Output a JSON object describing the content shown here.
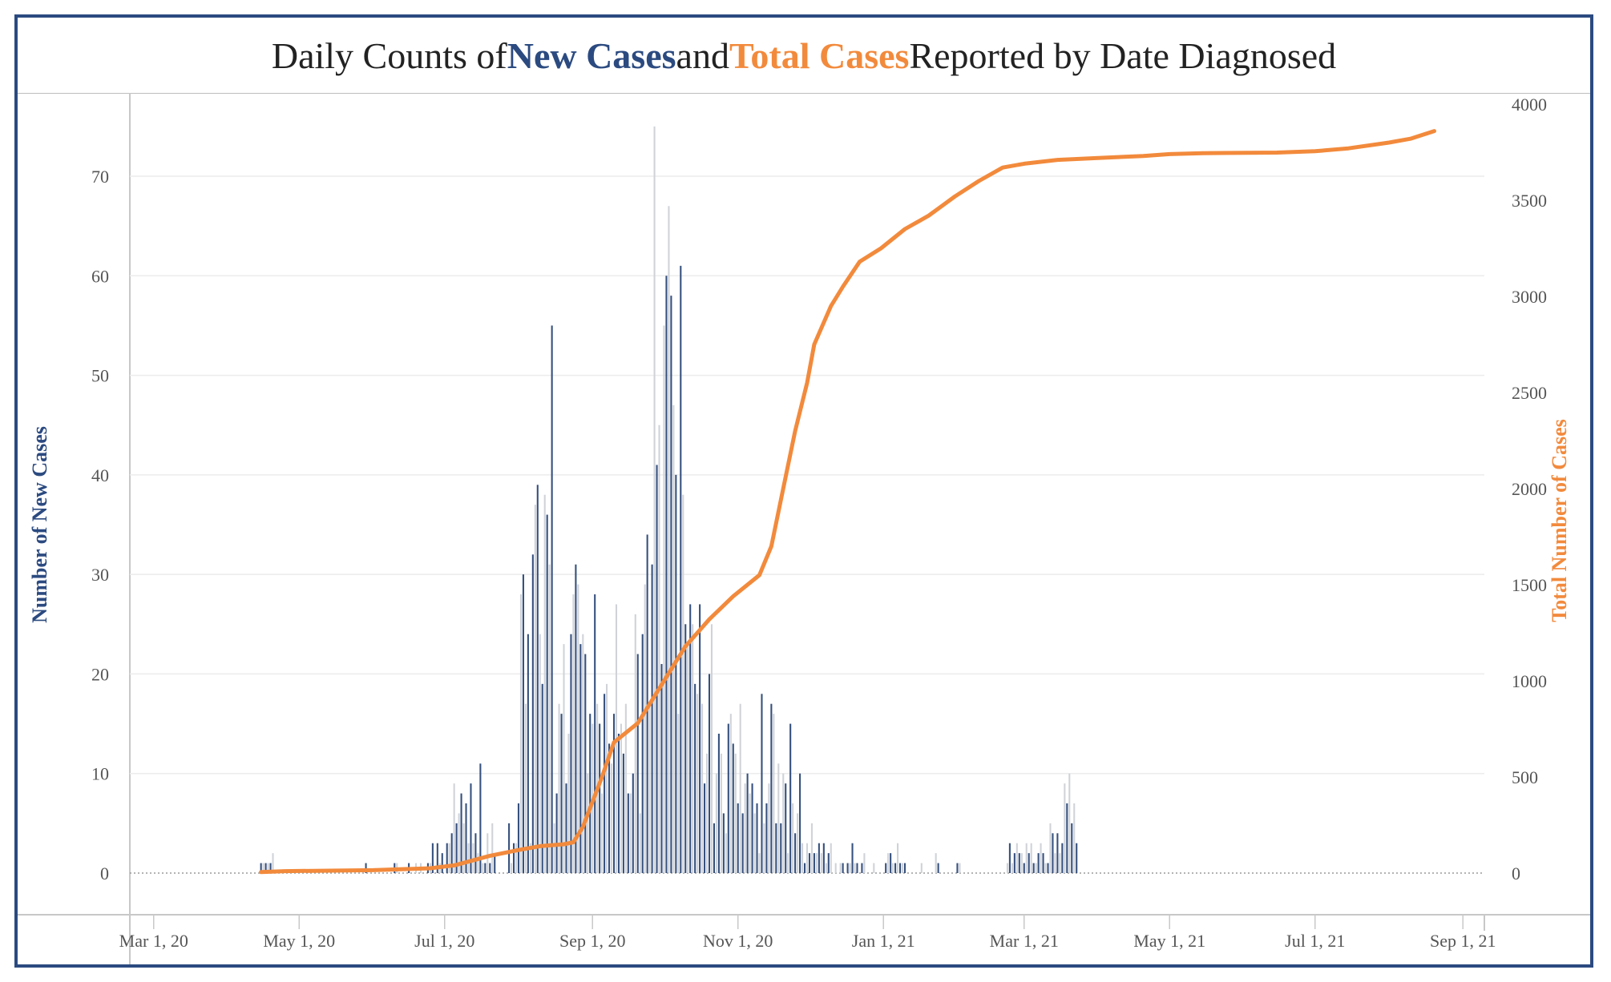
{
  "title": {
    "prefix": "Daily Counts of ",
    "series_a": "New Cases",
    "middle": " and ",
    "series_b": "Total Cases",
    "suffix": " Reported by Date Diagnosed"
  },
  "colors": {
    "frame": "#2b4a80",
    "bar_dark": "#35507e",
    "bar_light": "#cfd3d8",
    "line": "#f28a3c",
    "grid": "#ececec",
    "text": "#555555"
  },
  "chart_data": {
    "type": "bar",
    "xlabel": "",
    "ylabel": "Number of New Cases",
    "y2label": "Total Number of Cases",
    "ylim": [
      0,
      78
    ],
    "y2lim": [
      0,
      4000
    ],
    "yticks": [
      0,
      10,
      20,
      30,
      40,
      50,
      60,
      70
    ],
    "y2ticks": [
      0,
      500,
      1000,
      1500,
      2000,
      2500,
      3000,
      3500,
      4000
    ],
    "xlim": [
      "2020-02-20",
      "2021-09-10"
    ],
    "xticks": [
      {
        "date": "2020-03-01",
        "label": "Mar 1, 20"
      },
      {
        "date": "2020-05-01",
        "label": "May 1, 20"
      },
      {
        "date": "2020-07-01",
        "label": "Jul 1, 20"
      },
      {
        "date": "2020-09-01",
        "label": "Sep 1, 20"
      },
      {
        "date": "2020-11-01",
        "label": "Nov 1, 20"
      },
      {
        "date": "2021-01-01",
        "label": "Jan 1, 21"
      },
      {
        "date": "2021-03-01",
        "label": "Mar 1, 21"
      },
      {
        "date": "2021-05-01",
        "label": "May 1, 21"
      },
      {
        "date": "2021-07-01",
        "label": "Jul 1, 21"
      },
      {
        "date": "2021-09-01",
        "label": "Sep 1, 21"
      }
    ],
    "grid": true,
    "series": [
      {
        "name": "New Cases",
        "type": "bar",
        "axis": "left",
        "start_date": "2020-04-15",
        "values": [
          1,
          1,
          1,
          1,
          1,
          2,
          0,
          0,
          0,
          0,
          0,
          0,
          0,
          0,
          0,
          0,
          0,
          0,
          0,
          0,
          0,
          0,
          0,
          0,
          0,
          0,
          0,
          0,
          0,
          0,
          0,
          0,
          0,
          0,
          0,
          0,
          0,
          0,
          0,
          0,
          0,
          0,
          0,
          0,
          1,
          0,
          0,
          0,
          0,
          0,
          0,
          0,
          0,
          0,
          0,
          0,
          1,
          1,
          0,
          0,
          0,
          0,
          1,
          0,
          0,
          1,
          0,
          1,
          0,
          0,
          1,
          1,
          3,
          0,
          3,
          1,
          2,
          0,
          3,
          3,
          4,
          9,
          5,
          6,
          8,
          5,
          7,
          3,
          9,
          3,
          4,
          2,
          11,
          1,
          1,
          4,
          1,
          5,
          2,
          0,
          0,
          0,
          0,
          0,
          5,
          1,
          3,
          3,
          7,
          28,
          30,
          17,
          24,
          3,
          32,
          37,
          39,
          24,
          19,
          38,
          36,
          31,
          55,
          5,
          8,
          17,
          16,
          23,
          9,
          14,
          24,
          28,
          31,
          29,
          23,
          24,
          22,
          10,
          16,
          15,
          28,
          17,
          15,
          8,
          18,
          19,
          13,
          11,
          16,
          27,
          14,
          15,
          12,
          17,
          8,
          8,
          10,
          26,
          22,
          6,
          24,
          29,
          34,
          17,
          31,
          75,
          41,
          45,
          21,
          55,
          60,
          67,
          58,
          47,
          40,
          16,
          61,
          38,
          25,
          23,
          27,
          25,
          19,
          18,
          27,
          17,
          9,
          12,
          20,
          25,
          5,
          10,
          14,
          12,
          6,
          4,
          15,
          16,
          13,
          12,
          7,
          17,
          6,
          9,
          10,
          8,
          9,
          6,
          7,
          2,
          18,
          5,
          7,
          9,
          17,
          16,
          5,
          11,
          5,
          10,
          9,
          2,
          15,
          7,
          4,
          6,
          10,
          3,
          1,
          3,
          2,
          5,
          2,
          2,
          3,
          2,
          3,
          1,
          2,
          3,
          0,
          1,
          0,
          1,
          1,
          0,
          1,
          1,
          3,
          1,
          1,
          0,
          1,
          2,
          0,
          0,
          0,
          1,
          0,
          0,
          0,
          0,
          1,
          2,
          2,
          1,
          1,
          3,
          1,
          1,
          1,
          0,
          0,
          0,
          0,
          0,
          0,
          1,
          0,
          0,
          0,
          0,
          0,
          2,
          1,
          0,
          0,
          0,
          0,
          0,
          0,
          0,
          1,
          1,
          0,
          0,
          0,
          0,
          0,
          0,
          0,
          0,
          0,
          0,
          0,
          0,
          0,
          0,
          0,
          0,
          0,
          0,
          0,
          1,
          3,
          1,
          2,
          3,
          2,
          2,
          1,
          3,
          2,
          3,
          1,
          1,
          2,
          3,
          2,
          1,
          1,
          5,
          4,
          2,
          4,
          2,
          3,
          9,
          7,
          10,
          5,
          7,
          3
        ]
      },
      {
        "name": "Total Cases",
        "type": "line",
        "axis": "right",
        "points": [
          [
            "2020-04-15",
            5
          ],
          [
            "2020-04-25",
            10
          ],
          [
            "2020-06-01",
            15
          ],
          [
            "2020-06-25",
            25
          ],
          [
            "2020-07-05",
            40
          ],
          [
            "2020-07-20",
            90
          ],
          [
            "2020-08-01",
            120
          ],
          [
            "2020-08-10",
            140
          ],
          [
            "2020-08-20",
            150
          ],
          [
            "2020-08-24",
            160
          ],
          [
            "2020-08-28",
            240
          ],
          [
            "2020-09-05",
            500
          ],
          [
            "2020-09-10",
            680
          ],
          [
            "2020-09-20",
            780
          ],
          [
            "2020-10-01",
            1000
          ],
          [
            "2020-10-10",
            1180
          ],
          [
            "2020-10-20",
            1320
          ],
          [
            "2020-10-30",
            1440
          ],
          [
            "2020-11-10",
            1550
          ],
          [
            "2020-11-15",
            1700
          ],
          [
            "2020-11-20",
            2000
          ],
          [
            "2020-11-25",
            2300
          ],
          [
            "2020-11-30",
            2550
          ],
          [
            "2020-12-03",
            2750
          ],
          [
            "2020-12-10",
            2950
          ],
          [
            "2020-12-15",
            3050
          ],
          [
            "2020-12-22",
            3180
          ],
          [
            "2020-12-31",
            3250
          ],
          [
            "2021-01-10",
            3350
          ],
          [
            "2021-01-20",
            3420
          ],
          [
            "2021-01-31",
            3520
          ],
          [
            "2021-02-10",
            3600
          ],
          [
            "2021-02-20",
            3670
          ],
          [
            "2021-03-01",
            3690
          ],
          [
            "2021-03-15",
            3710
          ],
          [
            "2021-04-01",
            3720
          ],
          [
            "2021-04-20",
            3730
          ],
          [
            "2021-05-01",
            3740
          ],
          [
            "2021-05-15",
            3745
          ],
          [
            "2021-06-15",
            3748
          ],
          [
            "2021-07-01",
            3755
          ],
          [
            "2021-07-15",
            3770
          ],
          [
            "2021-08-01",
            3800
          ],
          [
            "2021-08-10",
            3820
          ],
          [
            "2021-08-20",
            3860
          ]
        ]
      }
    ]
  }
}
